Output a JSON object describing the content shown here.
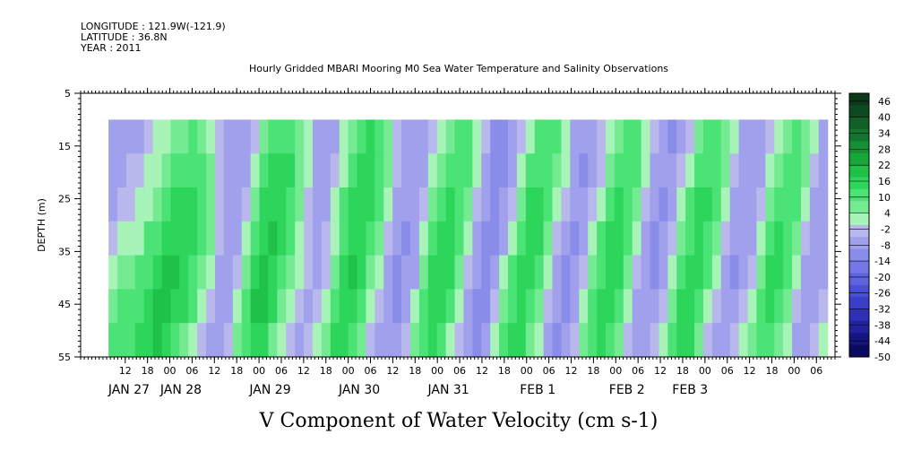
{
  "header": {
    "longitude": "LONGITUDE : 121.9W(-121.9)",
    "latitude": "LATITUDE : 36.8N",
    "year": "YEAR : 2011"
  },
  "chart_data": {
    "type": "heatmap",
    "title": "Hourly Gridded MBARI Mooring M0 Sea Water Temperature and Salinity Observations",
    "xlabel": "",
    "ylabel": "DEPTH (m)",
    "bottom_title": "V Component of Water Velocity (cm s-1)",
    "y_range": [
      5,
      55
    ],
    "y_reversed": true,
    "y_ticks": [
      5,
      15,
      25,
      35,
      45,
      55
    ],
    "data_depth_range": [
      10,
      55
    ],
    "x_hour_ticks": [
      {
        "t": 12,
        "label": "12"
      },
      {
        "t": 18,
        "label": "18"
      },
      {
        "t": 24,
        "label": "00"
      },
      {
        "t": 30,
        "label": "06"
      },
      {
        "t": 36,
        "label": "12"
      },
      {
        "t": 42,
        "label": "18"
      },
      {
        "t": 48,
        "label": "00"
      },
      {
        "t": 54,
        "label": "06"
      },
      {
        "t": 60,
        "label": "12"
      },
      {
        "t": 66,
        "label": "18"
      },
      {
        "t": 72,
        "label": "00"
      },
      {
        "t": 78,
        "label": "06"
      },
      {
        "t": 84,
        "label": "12"
      },
      {
        "t": 90,
        "label": "18"
      },
      {
        "t": 96,
        "label": "00"
      },
      {
        "t": 102,
        "label": "06"
      },
      {
        "t": 108,
        "label": "12"
      },
      {
        "t": 114,
        "label": "18"
      },
      {
        "t": 120,
        "label": "00"
      },
      {
        "t": 126,
        "label": "06"
      },
      {
        "t": 132,
        "label": "12"
      },
      {
        "t": 138,
        "label": "18"
      },
      {
        "t": 144,
        "label": "00"
      },
      {
        "t": 150,
        "label": "06"
      },
      {
        "t": 156,
        "label": "12"
      },
      {
        "t": 162,
        "label": "18"
      },
      {
        "t": 168,
        "label": "00"
      },
      {
        "t": 174,
        "label": "06"
      },
      {
        "t": 180,
        "label": "12"
      },
      {
        "t": 186,
        "label": "18"
      },
      {
        "t": 192,
        "label": "00"
      },
      {
        "t": 198,
        "label": "06"
      }
    ],
    "x_day_labels": [
      {
        "t": 13,
        "label": "JAN 27"
      },
      {
        "t": 27,
        "label": "JAN 28"
      },
      {
        "t": 51,
        "label": "JAN 29"
      },
      {
        "t": 75,
        "label": "JAN 30"
      },
      {
        "t": 99,
        "label": "JAN 31"
      },
      {
        "t": 123,
        "label": "FEB  1"
      },
      {
        "t": 147,
        "label": "FEB  2"
      },
      {
        "t": 164,
        "label": "FEB  3"
      }
    ],
    "x_range_hours": [
      0,
      203
    ],
    "data_hour_range": [
      7.5,
      201
    ],
    "colorbar": {
      "levels": [
        "46",
        "40",
        "34",
        "28",
        "22",
        "16",
        "10",
        "4",
        "-2",
        "-8",
        "-14",
        "-20",
        "-26",
        "-32",
        "-38",
        "-44",
        "-50"
      ],
      "range": [
        -50,
        49
      ],
      "band_colors": [
        "#0a3a1a",
        "#0e4a20",
        "#116027",
        "#13762e",
        "#169034",
        "#18a83a",
        "#1fc148",
        "#2dd65a",
        "#4be276",
        "#74eb93",
        "#a7f3b8",
        "#b8b8ec",
        "#a0a0ec",
        "#8a8cea",
        "#7478e6",
        "#5e64e0",
        "#4a50d6",
        "#3a3ec8",
        "#2e30b6",
        "#22229c",
        "#151580",
        "#0a0a60"
      ]
    },
    "column_values": [
      [
        -7,
        -5,
        -5,
        -1,
        4,
        6,
        9
      ],
      [
        -7,
        -5,
        -2,
        1,
        6,
        9,
        12
      ],
      [
        -6,
        -4,
        -2,
        3,
        7,
        11,
        13
      ],
      [
        -5,
        -3,
        0,
        4,
        10,
        13,
        15
      ],
      [
        -3,
        0,
        4,
        9,
        13,
        17,
        16
      ],
      [
        0,
        4,
        8,
        13,
        17,
        19,
        18
      ],
      [
        3,
        7,
        12,
        16,
        19,
        20,
        17
      ],
      [
        6,
        10,
        14,
        17,
        18,
        17,
        12
      ],
      [
        8,
        12,
        15,
        17,
        16,
        14,
        8
      ],
      [
        9,
        13,
        16,
        15,
        13,
        10,
        4
      ],
      [
        7,
        11,
        13,
        11,
        8,
        4,
        -2
      ],
      [
        3,
        6,
        7,
        5,
        2,
        -3,
        -7
      ],
      [
        -3,
        -2,
        -2,
        -4,
        -7,
        -9,
        -9
      ],
      [
        -7,
        -6,
        -7,
        -8,
        -9,
        -8,
        -4
      ],
      [
        -9,
        -8,
        -8,
        -7,
        -4,
        0,
        5
      ],
      [
        -7,
        -5,
        -2,
        2,
        6,
        10,
        13
      ],
      [
        -2,
        3,
        8,
        12,
        16,
        18,
        17
      ],
      [
        5,
        10,
        14,
        17,
        19,
        18,
        14
      ],
      [
        10,
        14,
        17,
        18,
        17,
        14,
        8
      ],
      [
        13,
        16,
        17,
        15,
        12,
        8,
        3
      ],
      [
        12,
        14,
        13,
        10,
        6,
        2,
        -2
      ],
      [
        7,
        8,
        6,
        3,
        0,
        -3,
        -5
      ],
      [
        0,
        1,
        -1,
        -3,
        -4,
        -5,
        -4
      ],
      [
        -5,
        -5,
        -6,
        -6,
        -5,
        -3,
        0
      ],
      [
        -7,
        -7,
        -6,
        -4,
        -1,
        3,
        7
      ],
      [
        -5,
        -3,
        0,
        4,
        8,
        12,
        14
      ],
      [
        0,
        4,
        9,
        13,
        16,
        17,
        16
      ],
      [
        7,
        11,
        15,
        17,
        18,
        16,
        11
      ],
      [
        12,
        15,
        17,
        17,
        15,
        11,
        5
      ],
      [
        14,
        16,
        15,
        12,
        8,
        4,
        -1
      ],
      [
        11,
        12,
        10,
        6,
        2,
        -2,
        -6
      ],
      [
        5,
        5,
        3,
        -1,
        -5,
        -8,
        -9
      ],
      [
        -1,
        -2,
        -5,
        -8,
        -10,
        -10,
        -8
      ],
      [
        -6,
        -7,
        -9,
        -10,
        -9,
        -6,
        -2
      ],
      [
        -9,
        -9,
        -9,
        -8,
        -5,
        0,
        5
      ],
      [
        -8,
        -6,
        -3,
        1,
        6,
        10,
        12
      ],
      [
        -4,
        0,
        5,
        10,
        14,
        16,
        15
      ],
      [
        2,
        7,
        12,
        15,
        17,
        16,
        11
      ],
      [
        8,
        12,
        15,
        16,
        14,
        10,
        4
      ],
      [
        11,
        13,
        12,
        9,
        5,
        1,
        -3
      ],
      [
        9,
        9,
        6,
        2,
        -2,
        -6,
        -8
      ],
      [
        3,
        1,
        -2,
        -6,
        -9,
        -11,
        -10
      ],
      [
        -4,
        -6,
        -9,
        -11,
        -12,
        -10,
        -6
      ],
      [
        -10,
        -11,
        -12,
        -11,
        -8,
        -4,
        1
      ],
      [
        -12,
        -11,
        -9,
        -5,
        0,
        5,
        9
      ],
      [
        -9,
        -6,
        -1,
        4,
        9,
        13,
        14
      ],
      [
        -3,
        2,
        8,
        13,
        16,
        17,
        14
      ],
      [
        4,
        9,
        14,
        16,
        16,
        13,
        7
      ],
      [
        10,
        13,
        15,
        14,
        11,
        6,
        0
      ],
      [
        12,
        13,
        11,
        7,
        2,
        -3,
        -7
      ],
      [
        9,
        8,
        4,
        -1,
        -6,
        -9,
        -10
      ],
      [
        2,
        0,
        -4,
        -8,
        -10,
        -10,
        -7
      ],
      [
        -5,
        -7,
        -9,
        -10,
        -9,
        -6,
        -1
      ],
      [
        -9,
        -10,
        -9,
        -7,
        -3,
        2,
        7
      ],
      [
        -8,
        -7,
        -4,
        0,
        5,
        10,
        13
      ],
      [
        -4,
        -1,
        4,
        9,
        13,
        16,
        16
      ],
      [
        2,
        7,
        12,
        15,
        17,
        16,
        12
      ],
      [
        8,
        12,
        15,
        16,
        15,
        11,
        5
      ],
      [
        11,
        13,
        13,
        11,
        7,
        2,
        -3
      ],
      [
        9,
        9,
        7,
        3,
        -2,
        -6,
        -8
      ],
      [
        4,
        2,
        -1,
        -5,
        -8,
        -9,
        -8
      ],
      [
        -3,
        -5,
        -8,
        -10,
        -10,
        -7,
        -3
      ],
      [
        -8,
        -9,
        -10,
        -9,
        -6,
        -1,
        4
      ],
      [
        -10,
        -9,
        -7,
        -3,
        2,
        7,
        11
      ],
      [
        -7,
        -4,
        1,
        6,
        11,
        14,
        15
      ],
      [
        -1,
        4,
        9,
        13,
        16,
        17,
        14
      ],
      [
        6,
        10,
        14,
        16,
        16,
        13,
        8
      ],
      [
        11,
        13,
        14,
        12,
        9,
        4,
        -1
      ],
      [
        12,
        12,
        9,
        5,
        0,
        -4,
        -7
      ],
      [
        8,
        6,
        2,
        -3,
        -7,
        -9,
        -8
      ],
      [
        2,
        -1,
        -5,
        -8,
        -10,
        -8,
        -4
      ],
      [
        -5,
        -7,
        -9,
        -9,
        -7,
        -3,
        2
      ],
      [
        -9,
        -9,
        -8,
        -5,
        -1,
        4,
        8
      ],
      [
        -8,
        -6,
        -2,
        3,
        8,
        12,
        13
      ],
      [
        -3,
        1,
        6,
        11,
        14,
        15,
        13
      ],
      [
        3,
        8,
        12,
        15,
        15,
        13,
        8
      ],
      [
        8,
        11,
        13,
        13,
        10,
        6,
        1
      ],
      [
        9,
        10,
        9,
        6,
        2,
        -2,
        -5
      ],
      [
        6,
        5,
        2,
        -2,
        -5,
        -7,
        -7
      ],
      [
        0,
        -2,
        -5,
        -7,
        -8,
        -7,
        -4
      ],
      [
        -5,
        -7,
        -8,
        -8,
        -6,
        -2,
        2
      ]
    ]
  }
}
